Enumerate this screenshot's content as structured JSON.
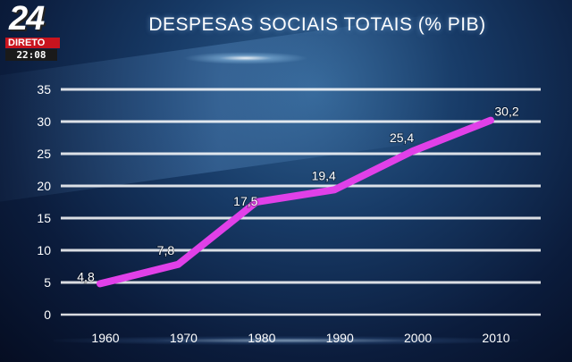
{
  "channel": {
    "logo_number": "24",
    "live_label": "DIRETO",
    "time": "22:08"
  },
  "chart_data": {
    "type": "line",
    "title": "DESPESAS SOCIAIS TOTAIS (% PIB)",
    "categories": [
      "1960",
      "1970",
      "1980",
      "1990",
      "2000",
      "2010"
    ],
    "values": [
      4.8,
      7.8,
      17.5,
      19.4,
      25.4,
      30.2
    ],
    "data_labels": [
      "4,8",
      "7,8",
      "17,5",
      "19,4",
      "25,4",
      "30,2"
    ],
    "y_ticks": [
      "0",
      "5",
      "10",
      "15",
      "20",
      "25",
      "30",
      "35"
    ],
    "ylim": [
      0,
      35
    ],
    "grid": true,
    "line_color": "#e040e8",
    "grid_color": "#ffffff"
  }
}
